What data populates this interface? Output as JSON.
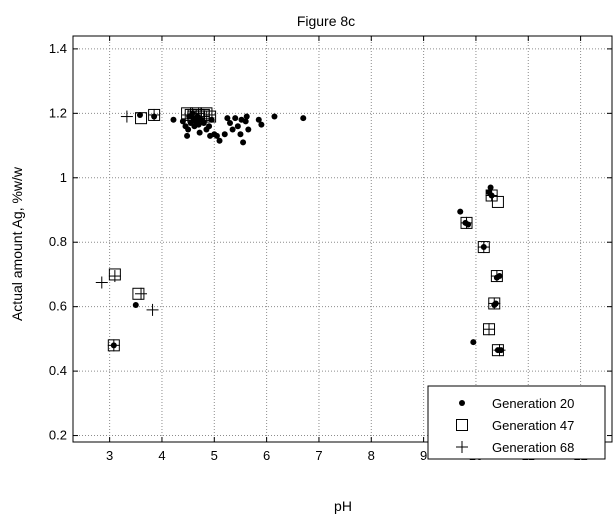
{
  "chart_data": {
    "type": "scatter",
    "title": "Figure 8c",
    "xlabel": "pH",
    "ylabel": "Actual amount Ag, %w/w",
    "xlim": [
      2.3,
      12.6
    ],
    "ylim": [
      0.18,
      1.44
    ],
    "xticks": [
      3,
      4,
      5,
      6,
      7,
      8,
      9,
      10,
      11,
      12
    ],
    "yticks": [
      0.2,
      0.4,
      0.6,
      0.8,
      1,
      1.2,
      1.4
    ],
    "grid": true,
    "legend_position": "bottom-right",
    "series": [
      {
        "name": "Generation 20",
        "marker": "dot",
        "points": [
          [
            3.08,
            0.48
          ],
          [
            3.5,
            0.605
          ],
          [
            3.58,
            1.195
          ],
          [
            3.85,
            1.19
          ],
          [
            4.22,
            1.18
          ],
          [
            4.4,
            1.175
          ],
          [
            4.45,
            1.16
          ],
          [
            4.48,
            1.13
          ],
          [
            4.5,
            1.15
          ],
          [
            4.52,
            1.19
          ],
          [
            4.55,
            1.17
          ],
          [
            4.58,
            1.2
          ],
          [
            4.6,
            1.185
          ],
          [
            4.62,
            1.16
          ],
          [
            4.65,
            1.175
          ],
          [
            4.68,
            1.19
          ],
          [
            4.7,
            1.165
          ],
          [
            4.72,
            1.14
          ],
          [
            4.75,
            1.18
          ],
          [
            4.8,
            1.17
          ],
          [
            4.85,
            1.15
          ],
          [
            4.9,
            1.16
          ],
          [
            4.92,
            1.13
          ],
          [
            4.95,
            1.18
          ],
          [
            5.0,
            1.135
          ],
          [
            5.05,
            1.13
          ],
          [
            5.1,
            1.115
          ],
          [
            5.2,
            1.135
          ],
          [
            5.25,
            1.185
          ],
          [
            5.3,
            1.17
          ],
          [
            5.35,
            1.15
          ],
          [
            5.4,
            1.185
          ],
          [
            5.45,
            1.16
          ],
          [
            5.5,
            1.135
          ],
          [
            5.52,
            1.18
          ],
          [
            5.55,
            1.11
          ],
          [
            5.6,
            1.175
          ],
          [
            5.62,
            1.19
          ],
          [
            5.65,
            1.15
          ],
          [
            5.85,
            1.18
          ],
          [
            5.9,
            1.165
          ],
          [
            6.15,
            1.19
          ],
          [
            6.7,
            1.185
          ],
          [
            9.7,
            0.895
          ],
          [
            9.8,
            0.86
          ],
          [
            9.85,
            0.855
          ],
          [
            9.95,
            0.49
          ],
          [
            10.15,
            0.785
          ],
          [
            10.25,
            0.955
          ],
          [
            10.28,
            0.97
          ],
          [
            10.3,
            0.945
          ],
          [
            10.35,
            0.605
          ],
          [
            10.38,
            0.61
          ],
          [
            10.4,
            0.69
          ],
          [
            10.42,
            0.465
          ],
          [
            10.45,
            0.695
          ],
          [
            10.48,
            0.465
          ]
        ]
      },
      {
        "name": "Generation 47",
        "marker": "square",
        "points": [
          [
            3.08,
            0.48
          ],
          [
            3.1,
            0.7
          ],
          [
            3.55,
            0.64
          ],
          [
            3.6,
            1.185
          ],
          [
            3.85,
            1.195
          ],
          [
            4.48,
            1.2
          ],
          [
            4.55,
            1.195
          ],
          [
            4.6,
            1.19
          ],
          [
            4.65,
            1.2
          ],
          [
            4.7,
            1.195
          ],
          [
            4.75,
            1.19
          ],
          [
            4.8,
            1.195
          ],
          [
            4.85,
            1.2
          ],
          [
            4.92,
            1.19
          ],
          [
            9.82,
            0.86
          ],
          [
            10.15,
            0.785
          ],
          [
            10.25,
            0.53
          ],
          [
            10.3,
            0.945
          ],
          [
            10.35,
            0.61
          ],
          [
            10.4,
            0.695
          ],
          [
            10.42,
            0.465
          ],
          [
            10.42,
            0.925
          ]
        ]
      },
      {
        "name": "Generation 68",
        "marker": "plus",
        "points": [
          [
            2.85,
            0.675
          ],
          [
            3.08,
            0.48
          ],
          [
            3.1,
            0.695
          ],
          [
            3.33,
            1.19
          ],
          [
            3.6,
            0.64
          ],
          [
            3.82,
            0.59
          ],
          [
            3.85,
            1.195
          ],
          [
            4.5,
            1.195
          ],
          [
            4.6,
            1.19
          ],
          [
            4.7,
            1.2
          ],
          [
            4.8,
            1.19
          ],
          [
            4.9,
            1.195
          ],
          [
            9.82,
            0.86
          ],
          [
            10.15,
            0.785
          ],
          [
            10.25,
            0.53
          ],
          [
            10.3,
            0.945
          ],
          [
            10.35,
            0.61
          ],
          [
            10.4,
            0.695
          ],
          [
            10.45,
            0.465
          ]
        ]
      }
    ]
  }
}
